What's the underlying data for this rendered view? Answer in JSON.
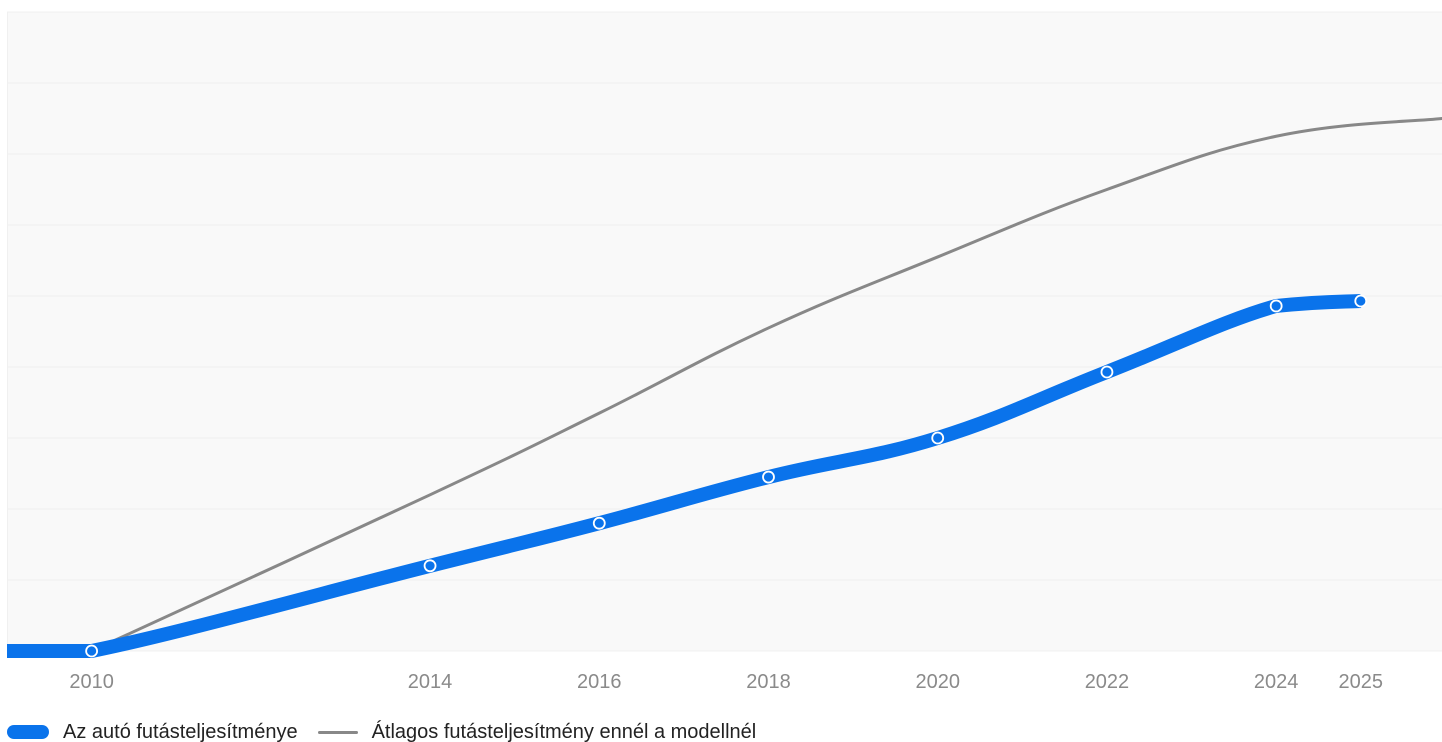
{
  "chart_data": {
    "type": "line",
    "x": [
      2010,
      2014,
      2016,
      2018,
      2020,
      2022,
      2024,
      2025
    ],
    "xlim": [
      2009,
      2025.96
    ],
    "ylim": [
      0,
      9
    ],
    "y_gridlines": 9,
    "grid": true,
    "legend_position": "bottom-left",
    "series": [
      {
        "name": "Az autó futásteljesítménye",
        "color": "#0A73EB",
        "style": "thick",
        "markers": true,
        "points": [
          [
            2009,
            0
          ],
          [
            2010,
            0
          ],
          [
            2014,
            1.2
          ],
          [
            2016,
            1.8
          ],
          [
            2018,
            2.45
          ],
          [
            2020,
            3.0
          ],
          [
            2022,
            3.93
          ],
          [
            2024,
            4.86
          ],
          [
            2025,
            4.93
          ]
        ],
        "marker_points": [
          [
            2010,
            0
          ],
          [
            2014,
            1.2
          ],
          [
            2016,
            1.8
          ],
          [
            2018,
            2.45
          ],
          [
            2020,
            3.0
          ],
          [
            2022,
            3.93
          ],
          [
            2024,
            4.86
          ],
          [
            2025,
            4.93
          ]
        ]
      },
      {
        "name": "Átlagos futásteljesítmény ennél a modellnél",
        "color": "#888888",
        "style": "thin",
        "markers": false,
        "points": [
          [
            2010,
            0
          ],
          [
            2014,
            2.2
          ],
          [
            2016,
            3.35
          ],
          [
            2018,
            4.55
          ],
          [
            2020,
            5.55
          ],
          [
            2022,
            6.5
          ],
          [
            2024,
            7.25
          ],
          [
            2025.96,
            7.5
          ]
        ]
      }
    ]
  },
  "legend": {
    "items": [
      {
        "label": "Az autó futásteljesítménye"
      },
      {
        "label": "Átlagos futásteljesítmény ennél a modellnél"
      }
    ]
  },
  "colors": {
    "plot_background": "#F9F9F9",
    "grid": "#F0F0F0",
    "tick_label": "#8A8A8A",
    "primary": "#0A73EB",
    "average": "#888888"
  }
}
